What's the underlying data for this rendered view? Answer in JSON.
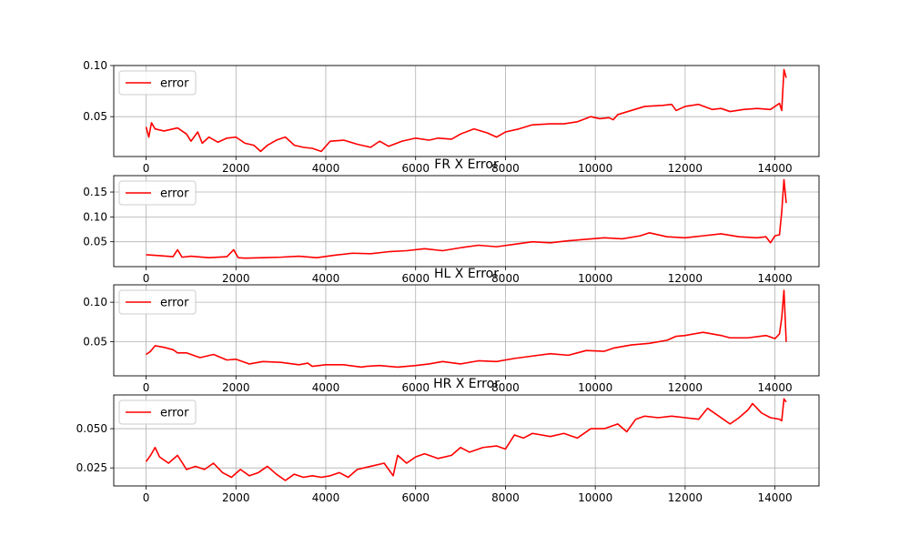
{
  "colors": {
    "line": "#ff0000",
    "grid": "#b0b0b0",
    "axis": "#000000"
  },
  "chart_data": [
    {
      "type": "line",
      "title": "",
      "xlabel": "",
      "ylabel": "",
      "xlim": [
        -720,
        14980
      ],
      "ylim": [
        0.011,
        0.1
      ],
      "xticks": [
        0,
        2000,
        4000,
        6000,
        8000,
        10000,
        12000,
        14000
      ],
      "yticks": [
        0.05,
        0.1
      ],
      "ytick_labels": [
        "0.05",
        "0.10"
      ],
      "grid": true,
      "legend_position": "upper left",
      "series": [
        {
          "name": "error",
          "color": "#ff0000",
          "x": [
            0,
            60,
            120,
            200,
            400,
            700,
            900,
            1000,
            1150,
            1250,
            1400,
            1600,
            1800,
            2000,
            2200,
            2400,
            2550,
            2700,
            2900,
            3100,
            3300,
            3500,
            3700,
            3900,
            4100,
            4400,
            4700,
            5000,
            5200,
            5400,
            5700,
            6000,
            6300,
            6500,
            6800,
            7000,
            7300,
            7600,
            7800,
            8000,
            8300,
            8600,
            9000,
            9300,
            9600,
            9900,
            10100,
            10300,
            10400,
            10500,
            10800,
            11100,
            11500,
            11700,
            11800,
            12000,
            12300,
            12600,
            12800,
            13000,
            13300,
            13600,
            13900,
            14100,
            14150,
            14200,
            14250
          ],
          "y": [
            0.04,
            0.03,
            0.044,
            0.038,
            0.036,
            0.039,
            0.033,
            0.026,
            0.035,
            0.024,
            0.03,
            0.025,
            0.029,
            0.03,
            0.024,
            0.022,
            0.016,
            0.022,
            0.027,
            0.03,
            0.022,
            0.02,
            0.019,
            0.016,
            0.026,
            0.027,
            0.023,
            0.02,
            0.026,
            0.021,
            0.026,
            0.029,
            0.027,
            0.029,
            0.028,
            0.033,
            0.038,
            0.034,
            0.03,
            0.035,
            0.038,
            0.042,
            0.043,
            0.043,
            0.045,
            0.05,
            0.048,
            0.049,
            0.047,
            0.052,
            0.056,
            0.06,
            0.061,
            0.062,
            0.056,
            0.06,
            0.062,
            0.057,
            0.058,
            0.055,
            0.057,
            0.058,
            0.057,
            0.063,
            0.056,
            0.096,
            0.088
          ]
        }
      ]
    },
    {
      "type": "line",
      "title": "FR X Error",
      "xlabel": "",
      "ylabel": "",
      "xlim": [
        -720,
        14980
      ],
      "ylim": [
        0.0,
        0.183
      ],
      "xticks": [
        0,
        2000,
        4000,
        6000,
        8000,
        10000,
        12000,
        14000
      ],
      "yticks": [
        0.05,
        0.1,
        0.15
      ],
      "ytick_labels": [
        "0.05",
        "0.10",
        "0.15"
      ],
      "grid": true,
      "legend_position": "upper left",
      "series": [
        {
          "name": "error",
          "color": "#ff0000",
          "x": [
            0,
            300,
            600,
            700,
            800,
            1000,
            1400,
            1800,
            1950,
            2050,
            2200,
            2600,
            3000,
            3400,
            3800,
            4200,
            4600,
            5000,
            5400,
            5800,
            6200,
            6600,
            7000,
            7400,
            7800,
            8200,
            8600,
            9000,
            9400,
            9800,
            10200,
            10600,
            11000,
            11200,
            11600,
            12000,
            12400,
            12800,
            13200,
            13600,
            13800,
            13900,
            14000,
            14100,
            14150,
            14200,
            14250
          ],
          "y": [
            0.024,
            0.022,
            0.02,
            0.034,
            0.019,
            0.021,
            0.018,
            0.02,
            0.034,
            0.018,
            0.017,
            0.018,
            0.019,
            0.021,
            0.018,
            0.023,
            0.027,
            0.026,
            0.03,
            0.032,
            0.036,
            0.032,
            0.038,
            0.043,
            0.04,
            0.045,
            0.05,
            0.048,
            0.052,
            0.055,
            0.058,
            0.056,
            0.062,
            0.068,
            0.06,
            0.058,
            0.062,
            0.066,
            0.06,
            0.058,
            0.06,
            0.048,
            0.062,
            0.064,
            0.11,
            0.175,
            0.128
          ]
        }
      ]
    },
    {
      "type": "line",
      "title": "HL X Error",
      "xlabel": "",
      "ylabel": "",
      "xlim": [
        -720,
        14980
      ],
      "ylim": [
        0.007,
        0.122
      ],
      "xticks": [
        0,
        2000,
        4000,
        6000,
        8000,
        10000,
        12000,
        14000
      ],
      "yticks": [
        0.05,
        0.1
      ],
      "ytick_labels": [
        "0.05",
        "0.10"
      ],
      "grid": true,
      "legend_position": "upper left",
      "series": [
        {
          "name": "error",
          "color": "#ff0000",
          "x": [
            0,
            100,
            200,
            400,
            600,
            700,
            900,
            1200,
            1500,
            1800,
            2000,
            2300,
            2600,
            3000,
            3400,
            3600,
            3700,
            4000,
            4400,
            4800,
            4900,
            5200,
            5600,
            6000,
            6300,
            6600,
            7000,
            7400,
            7800,
            8200,
            8600,
            9000,
            9400,
            9800,
            10200,
            10400,
            10800,
            11200,
            11600,
            11800,
            12000,
            12400,
            12800,
            13000,
            13400,
            13800,
            14000,
            14100,
            14150,
            14200,
            14250
          ],
          "y": [
            0.034,
            0.038,
            0.045,
            0.043,
            0.04,
            0.036,
            0.036,
            0.03,
            0.034,
            0.027,
            0.028,
            0.022,
            0.025,
            0.024,
            0.021,
            0.023,
            0.019,
            0.021,
            0.021,
            0.018,
            0.019,
            0.02,
            0.018,
            0.02,
            0.022,
            0.025,
            0.022,
            0.026,
            0.025,
            0.029,
            0.032,
            0.035,
            0.033,
            0.039,
            0.038,
            0.042,
            0.046,
            0.048,
            0.052,
            0.057,
            0.058,
            0.062,
            0.058,
            0.055,
            0.055,
            0.058,
            0.054,
            0.06,
            0.08,
            0.115,
            0.05
          ]
        }
      ]
    },
    {
      "type": "line",
      "title": "HR X Error",
      "xlabel": "",
      "ylabel": "",
      "xlim": [
        -720,
        14980
      ],
      "ylim": [
        0.0135,
        0.0715
      ],
      "xticks": [
        0,
        2000,
        4000,
        6000,
        8000,
        10000,
        12000,
        14000
      ],
      "yticks": [
        0.025,
        0.05
      ],
      "ytick_labels": [
        "0.025",
        "0.050"
      ],
      "grid": true,
      "legend_position": "upper left",
      "series": [
        {
          "name": "error",
          "color": "#ff0000",
          "x": [
            0,
            100,
            200,
            300,
            500,
            700,
            900,
            1100,
            1300,
            1500,
            1700,
            1900,
            2100,
            2300,
            2500,
            2700,
            2900,
            3100,
            3300,
            3500,
            3700,
            3900,
            4100,
            4300,
            4500,
            4700,
            5000,
            5300,
            5500,
            5600,
            5800,
            6000,
            6200,
            6500,
            6800,
            7000,
            7200,
            7500,
            7800,
            8000,
            8200,
            8400,
            8600,
            9000,
            9300,
            9600,
            9900,
            10200,
            10500,
            10700,
            10900,
            11100,
            11400,
            11700,
            12000,
            12300,
            12500,
            12700,
            13000,
            13200,
            13400,
            13500,
            13700,
            13900,
            14100,
            14150,
            14200,
            14250
          ],
          "y": [
            0.029,
            0.033,
            0.038,
            0.032,
            0.028,
            0.033,
            0.024,
            0.026,
            0.024,
            0.028,
            0.022,
            0.019,
            0.024,
            0.02,
            0.022,
            0.026,
            0.021,
            0.017,
            0.021,
            0.019,
            0.02,
            0.019,
            0.02,
            0.022,
            0.019,
            0.024,
            0.026,
            0.028,
            0.02,
            0.033,
            0.028,
            0.032,
            0.034,
            0.031,
            0.033,
            0.038,
            0.035,
            0.038,
            0.039,
            0.037,
            0.046,
            0.044,
            0.047,
            0.045,
            0.047,
            0.044,
            0.05,
            0.05,
            0.053,
            0.048,
            0.056,
            0.058,
            0.057,
            0.058,
            0.057,
            0.056,
            0.063,
            0.059,
            0.053,
            0.057,
            0.062,
            0.066,
            0.06,
            0.057,
            0.056,
            0.055,
            0.069,
            0.067
          ]
        }
      ]
    }
  ]
}
